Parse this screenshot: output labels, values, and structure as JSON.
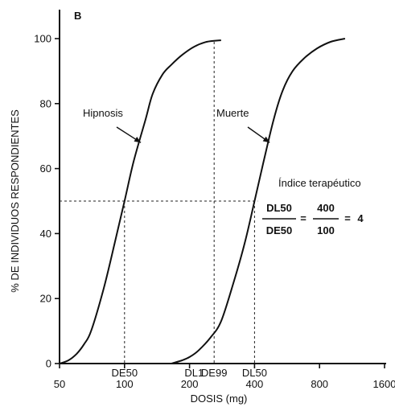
{
  "chart_data": {
    "type": "line",
    "panel_label": "B",
    "xlabel": "DOSIS (mg)",
    "ylabel": "% DE INDIVIDUOS RESPONDIENTES",
    "x_scale": "log",
    "xlim": [
      50,
      1600
    ],
    "ylim": [
      0,
      100
    ],
    "x_ticks": [
      50,
      100,
      200,
      400,
      800,
      1600
    ],
    "x_tick_labels": [
      "50",
      "100",
      "200",
      "400",
      "800",
      "1600"
    ],
    "y_ticks": [
      0,
      20,
      40,
      60,
      80,
      100
    ],
    "y_tick_labels": [
      "0",
      "20",
      "40",
      "60",
      "80",
      "100"
    ],
    "grid": false,
    "series": [
      {
        "name": "Hipnosis",
        "x": [
          50,
          55,
          60,
          65,
          70,
          80,
          90,
          100,
          110,
          125,
          135,
          150,
          165,
          185,
          210,
          240,
          280
        ],
        "y": [
          0,
          1,
          3,
          6,
          10,
          23,
          37,
          50,
          62,
          75,
          83,
          89,
          92,
          95,
          97.5,
          99,
          99.5
        ]
      },
      {
        "name": "Muerte",
        "x": [
          165,
          185,
          200,
          220,
          250,
          280,
          320,
          360,
          400,
          440,
          490,
          540,
          600,
          680,
          780,
          900,
          1050
        ],
        "y": [
          0,
          1,
          2,
          4,
          8,
          13,
          25,
          37,
          50,
          62,
          75,
          84,
          90,
          94,
          97,
          99,
          100
        ]
      }
    ],
    "annotations": {
      "dose_markers": [
        {
          "label": "DE50",
          "x": 100,
          "y": 50
        },
        {
          "label": "DL1",
          "x": 210,
          "y": 0
        },
        {
          "label": "DE99",
          "x": 260,
          "y": 99
        },
        {
          "label": "DL50",
          "x": 400,
          "y": 50
        }
      ],
      "reference_line_y": 50,
      "curve_labels": [
        {
          "text": "Hipnosis",
          "arrow_to": {
            "x": 119,
            "y": 68
          }
        },
        {
          "text": "Muerte",
          "arrow_to": {
            "x": 470,
            "y": 68
          }
        }
      ],
      "therapeutic_index": {
        "title": "Índice terapéutico",
        "lhs_num": "DL50",
        "lhs_den": "DE50",
        "equals": "=",
        "rhs_num": "400",
        "rhs_den": "100",
        "equals2": "=",
        "result": "4"
      }
    }
  }
}
